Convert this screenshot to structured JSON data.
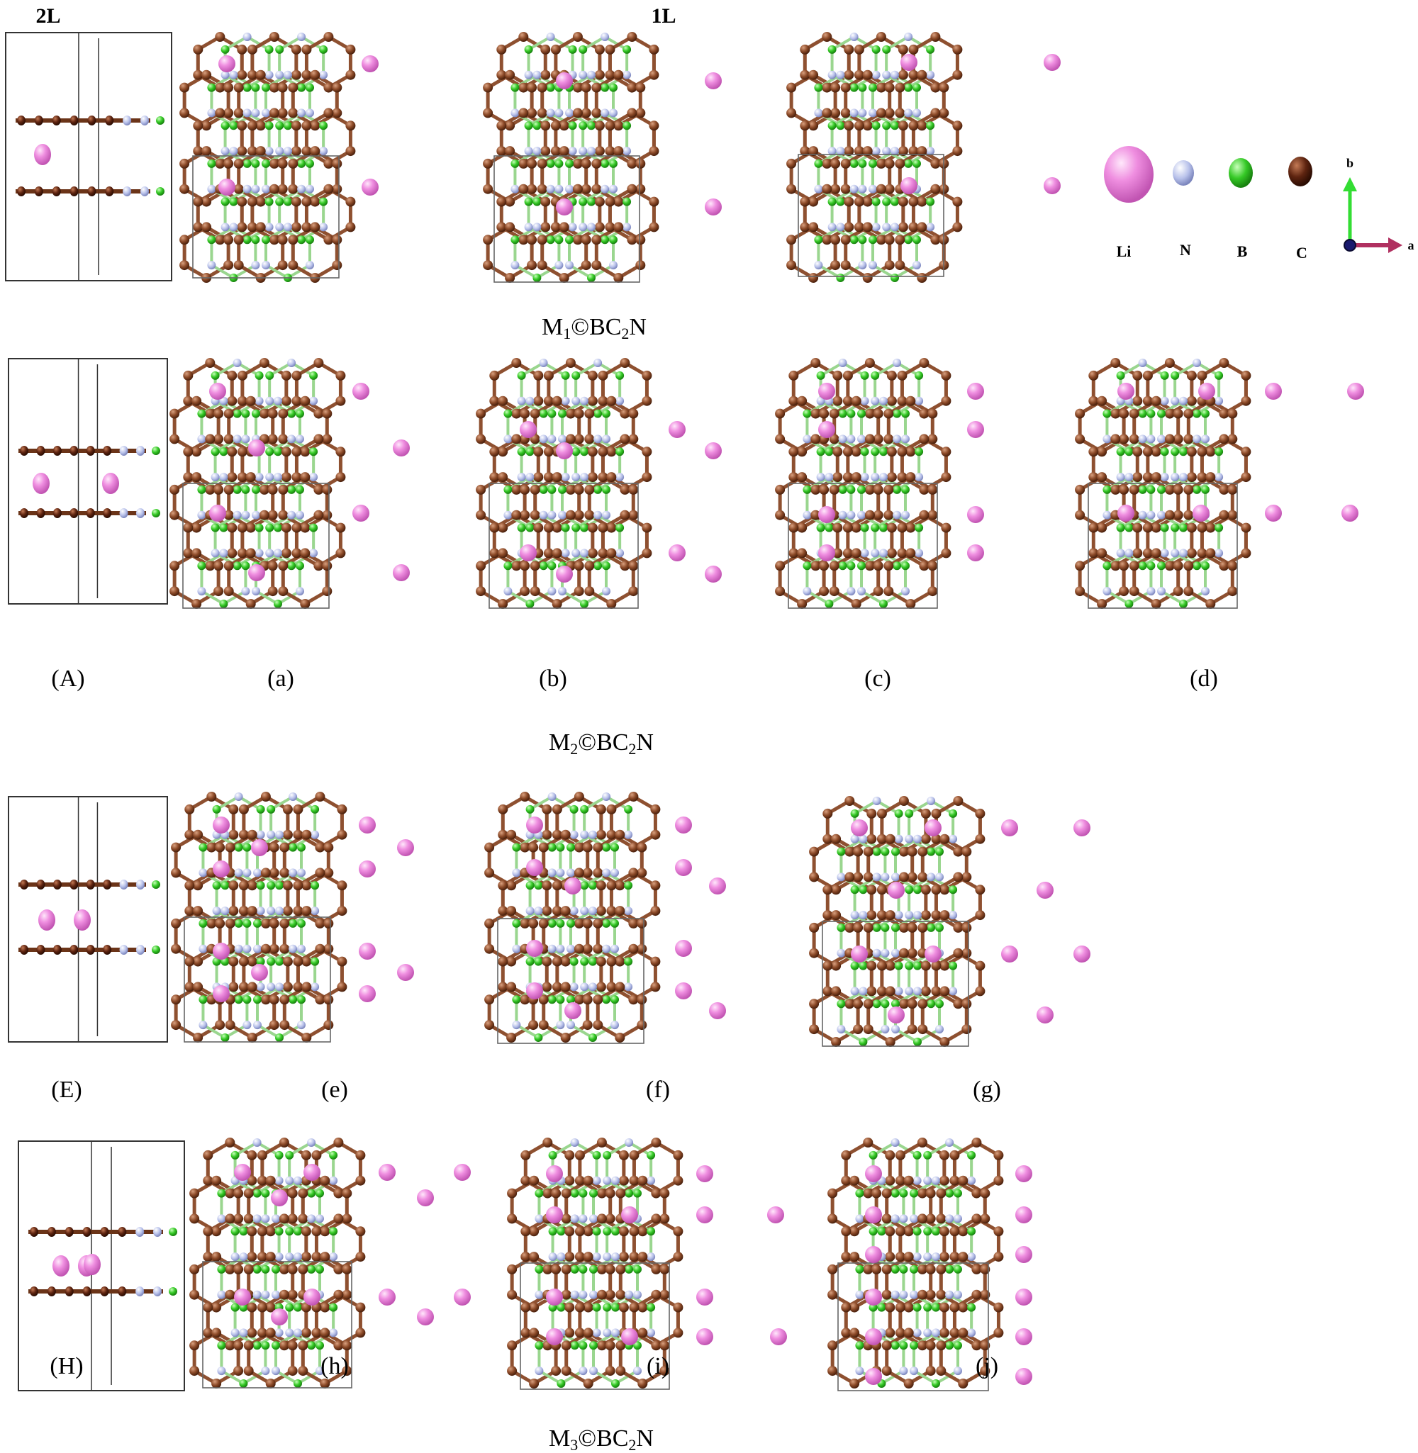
{
  "headers": {
    "two_layer": "2L",
    "one_layer": "1L"
  },
  "formulas": [
    {
      "prefix": "M",
      "sub": "1",
      "mid": "©BC",
      "sub2": "2",
      "suffix": "N"
    },
    {
      "prefix": "M",
      "sub": "2",
      "mid": "©BC",
      "sub2": "2",
      "suffix": "N"
    },
    {
      "prefix": "M",
      "sub": "3",
      "mid": "©BC",
      "sub2": "2",
      "suffix": "N"
    }
  ],
  "panel_labels": {
    "A": "(A)",
    "a": "(a)",
    "b": "(b)",
    "c": "(c)",
    "d": "(d)",
    "E": "(E)",
    "e": "(e)",
    "f": "(f)",
    "g": "(g)",
    "H": "(H)",
    "h": "(h)",
    "i": "(i)",
    "j": "(j)"
  },
  "legend": [
    {
      "label": "Li",
      "color": "#e87fd9"
    },
    {
      "label": "N",
      "color": "#aeb8e6"
    },
    {
      "label": "B",
      "color": "#2fbf1f"
    },
    {
      "label": "C",
      "color": "#7a3a1c"
    }
  ],
  "axes": {
    "b": "b",
    "a": "a",
    "b_color": "#33dd33",
    "a_color": "#b03060"
  },
  "colors": {
    "carbon": "#8e5030",
    "nitrogen": "#b4bde8",
    "boron": "#2ec21e",
    "lithium": "#ea84dc",
    "cell": "#555555"
  }
}
